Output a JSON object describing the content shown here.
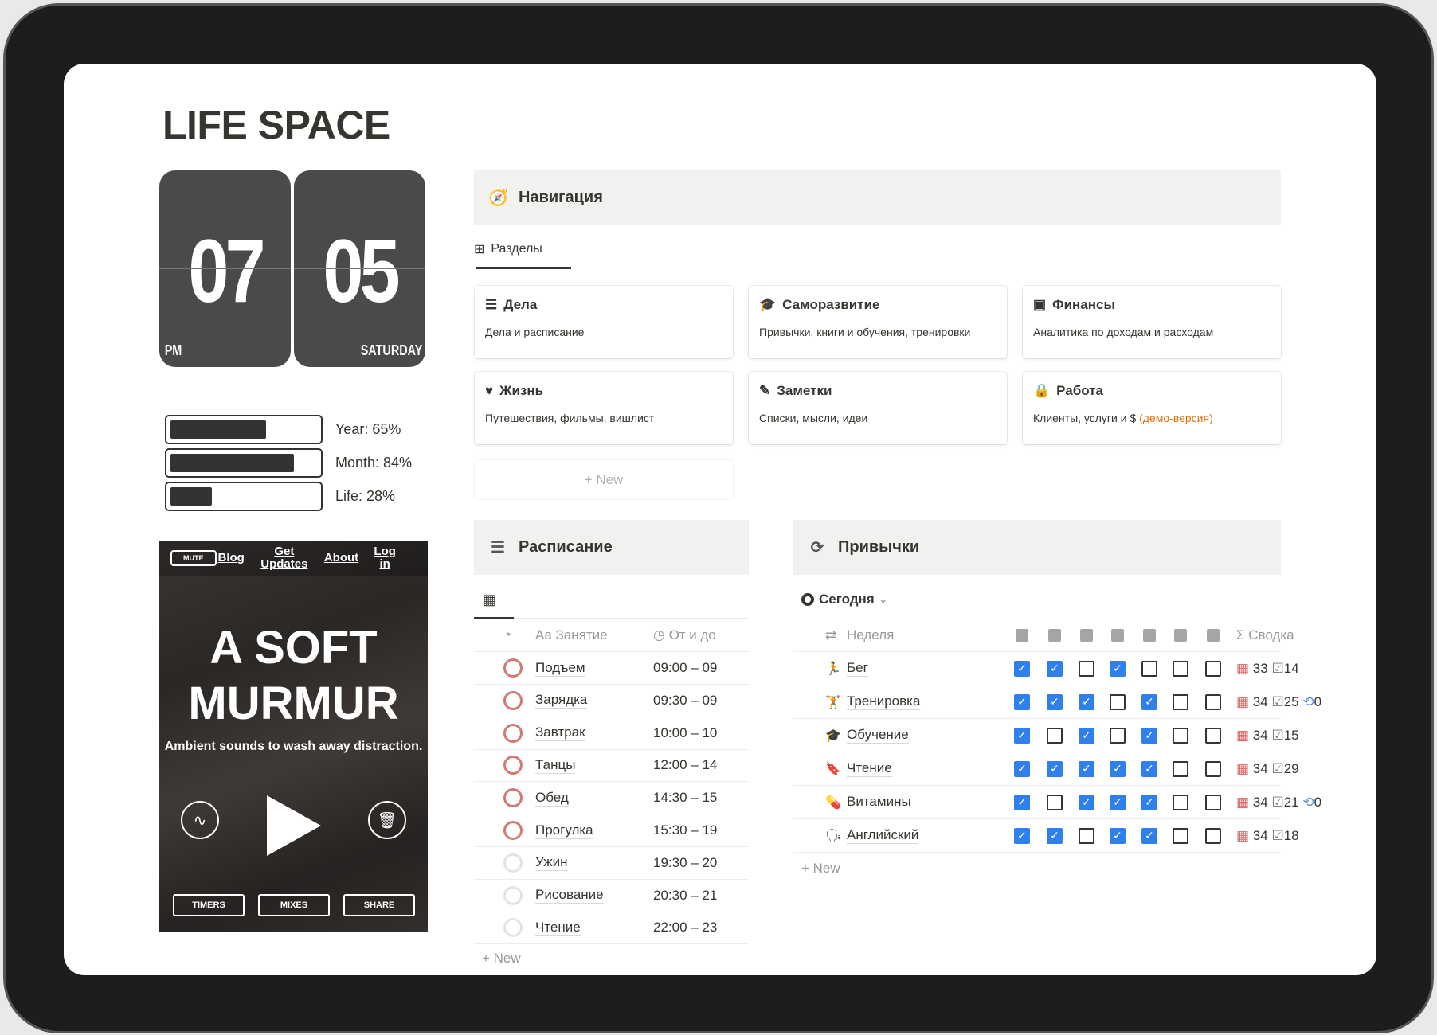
{
  "title": "LIFE SPACE",
  "clock": {
    "hour": "07",
    "minute": "05",
    "ampm": "PM",
    "day": "SATURDAY"
  },
  "progress": [
    {
      "label": "Year: 65%",
      "value": 65
    },
    {
      "label": "Month: 84%",
      "value": 84
    },
    {
      "label": "Life: 28%",
      "value": 28
    }
  ],
  "murmur": {
    "mute": "MUTE",
    "links": [
      "Blog",
      "Get Updates",
      "About",
      "Log in"
    ],
    "title_line1": "A SOFT",
    "title_line2": "MURMUR",
    "tagline": "Ambient sounds to wash away distraction.",
    "buttons": [
      "TIMERS",
      "MIXES",
      "SHARE"
    ]
  },
  "navigation": {
    "title": "Навигация",
    "tab": "Разделы",
    "new_label": "New",
    "cards": [
      {
        "icon": "checklist-icon",
        "title": "Дела",
        "desc": "Дела и расписание"
      },
      {
        "icon": "graduation-cap-icon",
        "title": "Саморазвитие",
        "desc": "Привычки, книги и обучения, тренировки"
      },
      {
        "icon": "money-icon",
        "title": "Финансы",
        "desc": "Аналитика по доходам и расходам"
      },
      {
        "icon": "heart-icon",
        "title": "Жизнь",
        "desc": "Путешествия, фильмы, вишлист"
      },
      {
        "icon": "edit-icon",
        "title": "Заметки",
        "desc": "Списки, мысли, идеи"
      },
      {
        "icon": "lock-icon",
        "title": "Работа",
        "desc": "Клиенты, услуги и $ ",
        "desc_accent": "(демо-версия)"
      }
    ]
  },
  "schedule": {
    "title": "Расписание",
    "col_name": "Aa Занятие",
    "col_time": "От и до",
    "new_label": "New",
    "rows": [
      {
        "name": "Подъем",
        "time": "09:00 – 09",
        "active": true
      },
      {
        "name": "Зарядка",
        "time": "09:30 – 09",
        "active": true
      },
      {
        "name": "Завтрак",
        "time": "10:00 – 10",
        "active": true
      },
      {
        "name": "Танцы",
        "time": "12:00 – 14",
        "active": true
      },
      {
        "name": "Обед",
        "time": "14:30 – 15",
        "active": true
      },
      {
        "name": "Прогулка",
        "time": "15:30 – 19",
        "active": true
      },
      {
        "name": "Ужин",
        "time": "19:30 – 20",
        "active": false
      },
      {
        "name": "Рисование",
        "time": "20:30 – 21",
        "active": false
      },
      {
        "name": "Чтение",
        "time": "22:00 – 23",
        "active": false
      }
    ]
  },
  "habits": {
    "title": "Привычки",
    "view": "Сегодня",
    "col_name": "Неделя",
    "col_summary": "Сводка",
    "new_label": "New",
    "accent": "#2f80ed",
    "rows": [
      {
        "name": "Бег",
        "icon": "running-icon",
        "days": [
          true,
          true,
          false,
          true,
          false,
          false,
          false
        ],
        "total": "33",
        "done": "14",
        "repeat": null
      },
      {
        "name": "Тренировка",
        "icon": "dumbbell-icon",
        "days": [
          true,
          true,
          true,
          false,
          true,
          false,
          false
        ],
        "total": "34",
        "done": "25",
        "repeat": "0"
      },
      {
        "name": "Обучение",
        "icon": "graduation-cap-icon",
        "days": [
          true,
          false,
          true,
          false,
          true,
          false,
          false
        ],
        "total": "34",
        "done": "15",
        "repeat": null
      },
      {
        "name": "Чтение",
        "icon": "bookmark-icon",
        "days": [
          true,
          true,
          true,
          true,
          true,
          false,
          false
        ],
        "total": "34",
        "done": "29",
        "repeat": null
      },
      {
        "name": "Витамины",
        "icon": "pill-icon",
        "days": [
          true,
          false,
          true,
          true,
          true,
          false,
          false
        ],
        "total": "34",
        "done": "21",
        "repeat": "0"
      },
      {
        "name": "Английский",
        "icon": "language-icon",
        "days": [
          true,
          true,
          false,
          true,
          true,
          false,
          false
        ],
        "total": "34",
        "done": "18",
        "repeat": null
      }
    ]
  }
}
